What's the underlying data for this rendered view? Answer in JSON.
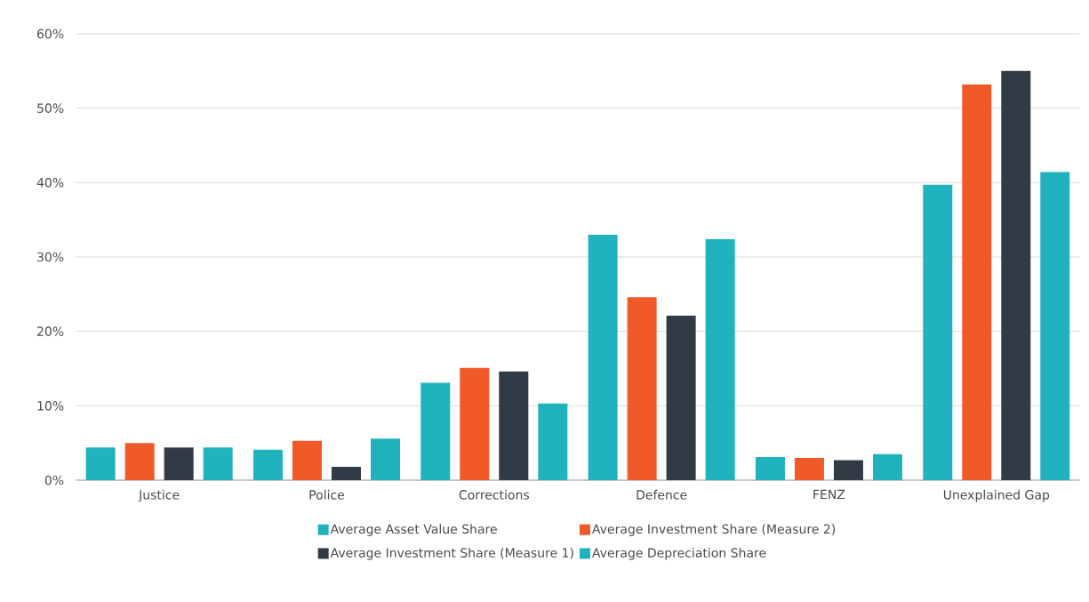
{
  "chart_data": {
    "type": "bar",
    "categories": [
      "Justice",
      "Police",
      "Corrections",
      "Defence",
      "FENZ",
      "Unexplained Gap"
    ],
    "series": [
      {
        "name": "Average Asset Value Share",
        "color": "#20b2bd",
        "values": [
          4.4,
          4.1,
          13.1,
          33.0,
          3.1,
          39.7
        ]
      },
      {
        "name": "Average Investment Share (Measure 2)",
        "color": "#f05a28",
        "values": [
          5.0,
          5.3,
          15.1,
          24.6,
          3.0,
          53.2
        ]
      },
      {
        "name": "Average Investment Share (Measure 1)",
        "color": "#323a45",
        "values": [
          4.4,
          1.8,
          14.6,
          22.1,
          2.7,
          55.0
        ]
      },
      {
        "name": "Average Depreciation Share",
        "color": "#20b2bd",
        "values": [
          4.4,
          5.6,
          10.3,
          32.4,
          3.5,
          41.4
        ]
      }
    ],
    "ylim": [
      0,
      60
    ],
    "yticks": [
      {
        "value": 0,
        "label": "0%"
      },
      {
        "value": 10,
        "label": "10%"
      },
      {
        "value": 20,
        "label": "20%"
      },
      {
        "value": 30,
        "label": "30%"
      },
      {
        "value": 40,
        "label": "40%"
      },
      {
        "value": 50,
        "label": "50%"
      },
      {
        "value": 60,
        "label": "60%"
      }
    ],
    "grid": "y",
    "legend": "bottom"
  }
}
